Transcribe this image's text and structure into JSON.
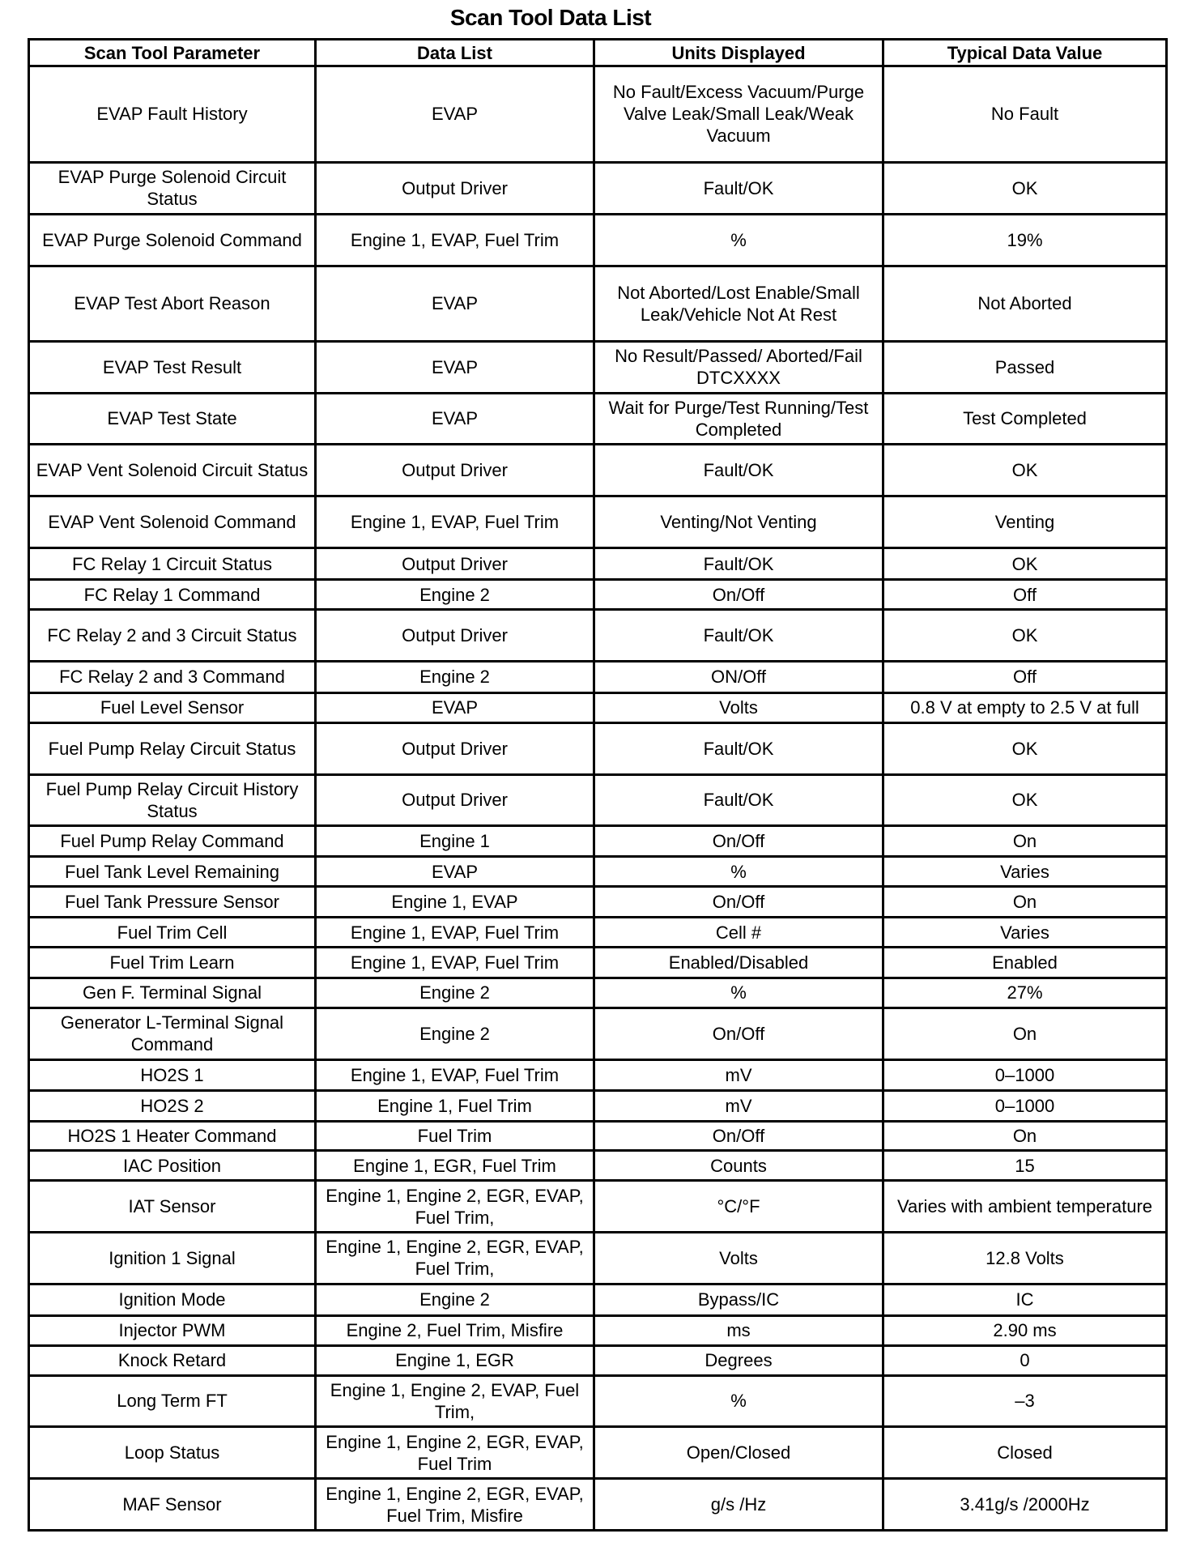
{
  "title": "Scan Tool Data List",
  "columns": [
    "Scan Tool Parameter",
    "Data List",
    "Units Displayed",
    "Typical Data Value"
  ],
  "rows": [
    [
      "EVAP Fault History",
      "EVAP",
      "No Fault/Excess Vacuum/Purge Valve Leak/Small Leak/Weak Vacuum",
      "No Fault"
    ],
    [
      "EVAP Purge Solenoid Circuit Status",
      "Output Driver",
      "Fault/OK",
      "OK"
    ],
    [
      "EVAP Purge Solenoid Command",
      "Engine 1, EVAP, Fuel Trim",
      "%",
      "19%"
    ],
    [
      "EVAP Test Abort Reason",
      "EVAP",
      "Not Aborted/Lost Enable/Small Leak/Vehicle Not At Rest",
      "Not Aborted"
    ],
    [
      "EVAP Test Result",
      "EVAP",
      "No Result/Passed/ Aborted/Fail DTCXXXX",
      "Passed"
    ],
    [
      "EVAP Test State",
      "EVAP",
      "Wait for Purge/Test Running/Test Completed",
      "Test Completed"
    ],
    [
      "EVAP Vent Solenoid Circuit Status",
      "Output Driver",
      "Fault/OK",
      "OK"
    ],
    [
      "EVAP Vent Solenoid Command",
      "Engine 1, EVAP, Fuel Trim",
      "Venting/Not Venting",
      "Venting"
    ],
    [
      "FC Relay 1 Circuit Status",
      "Output Driver",
      "Fault/OK",
      "OK"
    ],
    [
      "FC Relay 1 Command",
      "Engine 2",
      "On/Off",
      "Off"
    ],
    [
      "FC Relay 2 and 3 Circuit Status",
      "Output Driver",
      "Fault/OK",
      "OK"
    ],
    [
      "FC Relay 2 and 3 Command",
      "Engine 2",
      "ON/Off",
      "Off"
    ],
    [
      "Fuel Level Sensor",
      "EVAP",
      "Volts",
      "0.8 V at empty to 2.5 V at full"
    ],
    [
      "Fuel Pump Relay Circuit Status",
      "Output Driver",
      "Fault/OK",
      "OK"
    ],
    [
      "Fuel Pump Relay Circuit History Status",
      "Output Driver",
      "Fault/OK",
      "OK"
    ],
    [
      "Fuel Pump Relay Command",
      "Engine 1",
      "On/Off",
      "On"
    ],
    [
      "Fuel Tank Level Remaining",
      "EVAP",
      "%",
      "Varies"
    ],
    [
      "Fuel Tank Pressure Sensor",
      "Engine 1, EVAP",
      "On/Off",
      "On"
    ],
    [
      "Fuel Trim Cell",
      "Engine 1, EVAP, Fuel Trim",
      "Cell #",
      "Varies"
    ],
    [
      "Fuel Trim Learn",
      "Engine 1, EVAP, Fuel Trim",
      "Enabled/Disabled",
      "Enabled"
    ],
    [
      "Gen F. Terminal Signal",
      "Engine 2",
      "%",
      "27%"
    ],
    [
      "Generator L-Terminal Signal Command",
      "Engine 2",
      "On/Off",
      "On"
    ],
    [
      "HO2S 1",
      "Engine 1, EVAP, Fuel Trim",
      "mV",
      "0–1000"
    ],
    [
      "HO2S 2",
      "Engine 1, Fuel Trim",
      "mV",
      "0–1000"
    ],
    [
      "HO2S 1 Heater Command",
      "Fuel Trim",
      "On/Off",
      "On"
    ],
    [
      "IAC Position",
      "Engine 1, EGR, Fuel Trim",
      "Counts",
      "15"
    ],
    [
      "IAT Sensor",
      "Engine 1, Engine 2, EGR, EVAP, Fuel Trim,",
      "°C/°F",
      "Varies with ambient temperature"
    ],
    [
      "Ignition 1 Signal",
      "Engine 1, Engine 2, EGR, EVAP, Fuel Trim,",
      "Volts",
      "12.8 Volts"
    ],
    [
      "Ignition Mode",
      "Engine 2",
      "Bypass/IC",
      "IC"
    ],
    [
      "Injector PWM",
      "Engine 2, Fuel Trim, Misfire",
      "ms",
      "2.90 ms"
    ],
    [
      "Knock Retard",
      "Engine 1, EGR",
      "Degrees",
      "0"
    ],
    [
      "Long Term FT",
      "Engine 1, Engine 2, EVAP, Fuel Trim,",
      "%",
      "–3"
    ],
    [
      "Loop Status",
      "Engine 1, Engine 2, EGR, EVAP, Fuel Trim",
      "Open/Closed",
      "Closed"
    ],
    [
      "MAF Sensor",
      "Engine 1, Engine 2, EGR, EVAP, Fuel Trim, Misfire",
      "g/s /Hz",
      "3.41g/s /2000Hz"
    ]
  ]
}
